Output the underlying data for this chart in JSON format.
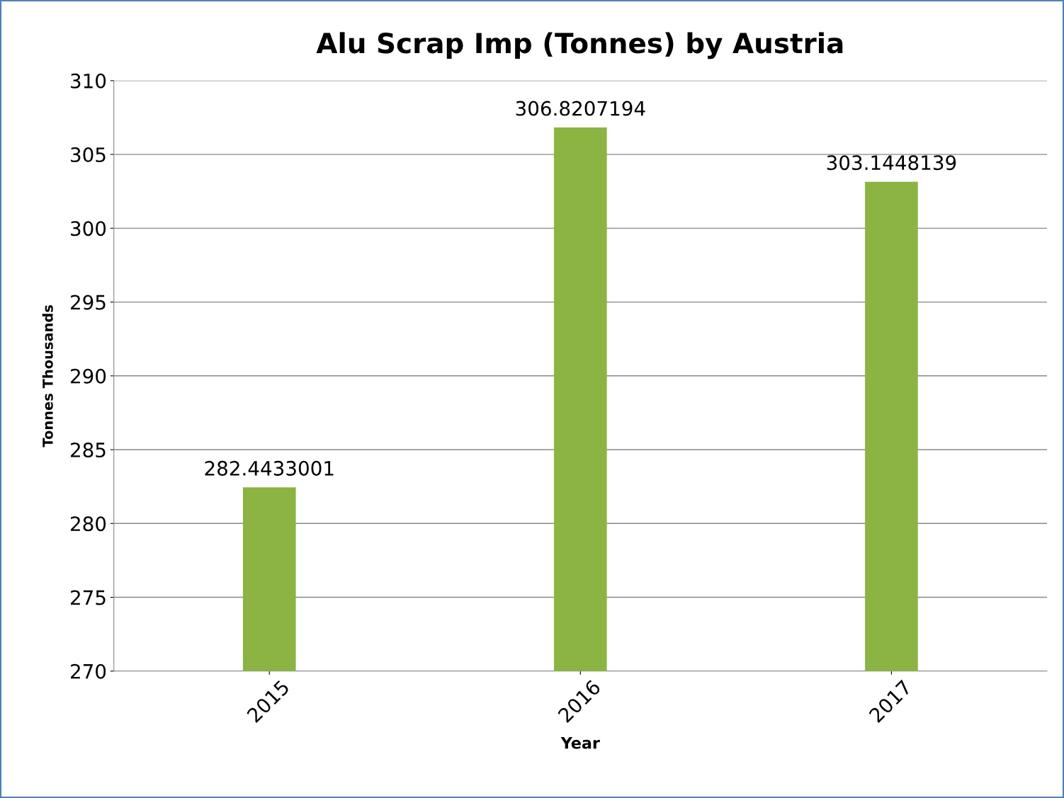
{
  "chart_data": {
    "type": "bar",
    "title": "Alu Scrap Imp (Tonnes) by Austria",
    "xlabel": "Year",
    "ylabel": "Tonnes Thousands",
    "categories": [
      "2015",
      "2016",
      "2017"
    ],
    "values": [
      282.4433001,
      306.8207194,
      303.1448139
    ],
    "color": "#8bb443",
    "data_labels": true,
    "ylim": [
      270,
      310
    ],
    "yticks": [
      270,
      275,
      280,
      285,
      290,
      295,
      300,
      305,
      310
    ],
    "grid": "y"
  }
}
